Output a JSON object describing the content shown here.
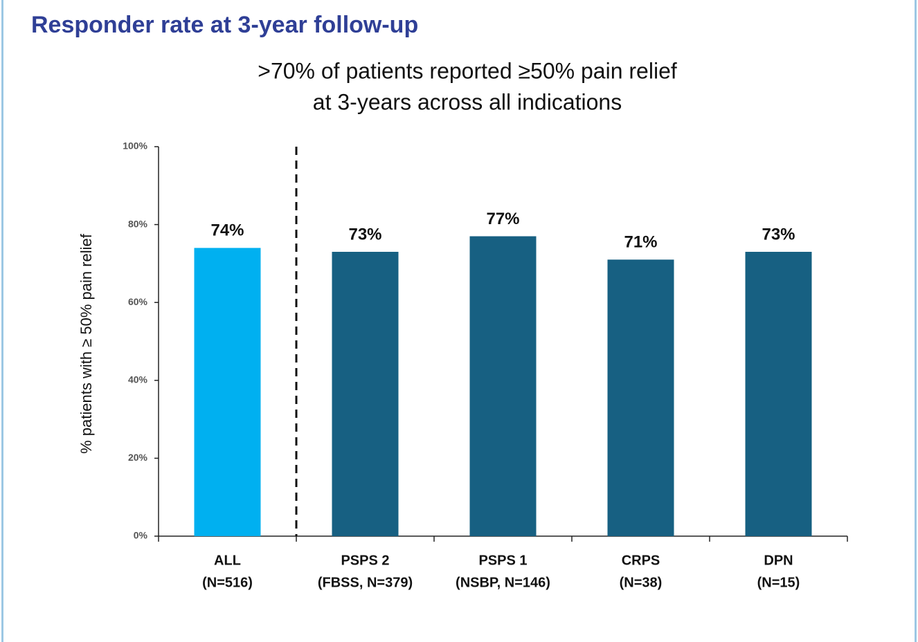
{
  "chart_data": {
    "type": "bar",
    "title": "Responder rate at 3-year follow-up",
    "subtitle": [
      ">70% of patients reported ≥50% pain relief",
      "at 3-years across all indications"
    ],
    "y_label": "% patients with ≥ 50% pain relief",
    "categories": [
      [
        "ALL",
        "(N=516)"
      ],
      [
        "PSPS 2",
        "(FBSS, N=379)"
      ],
      [
        "PSPS 1",
        "(NSBP, N=146)"
      ],
      [
        "CRPS",
        "(N=38)"
      ],
      [
        "DPN",
        "(N=15)"
      ]
    ],
    "values": [
      74,
      73,
      77,
      71,
      73
    ],
    "value_labels": [
      "74%",
      "73%",
      "77%",
      "71%",
      "73%"
    ],
    "colors": [
      "#00b0f0",
      "#176082",
      "#176082",
      "#176082",
      "#176082"
    ],
    "ylim": [
      0,
      100
    ],
    "yticks": [
      {
        "value": 0,
        "label": "0%"
      },
      {
        "value": 20,
        "label": "20%"
      },
      {
        "value": 40,
        "label": "40%"
      },
      {
        "value": 60,
        "label": "60%"
      },
      {
        "value": 80,
        "label": "80%"
      },
      {
        "value": 100,
        "label": "100%"
      }
    ]
  }
}
